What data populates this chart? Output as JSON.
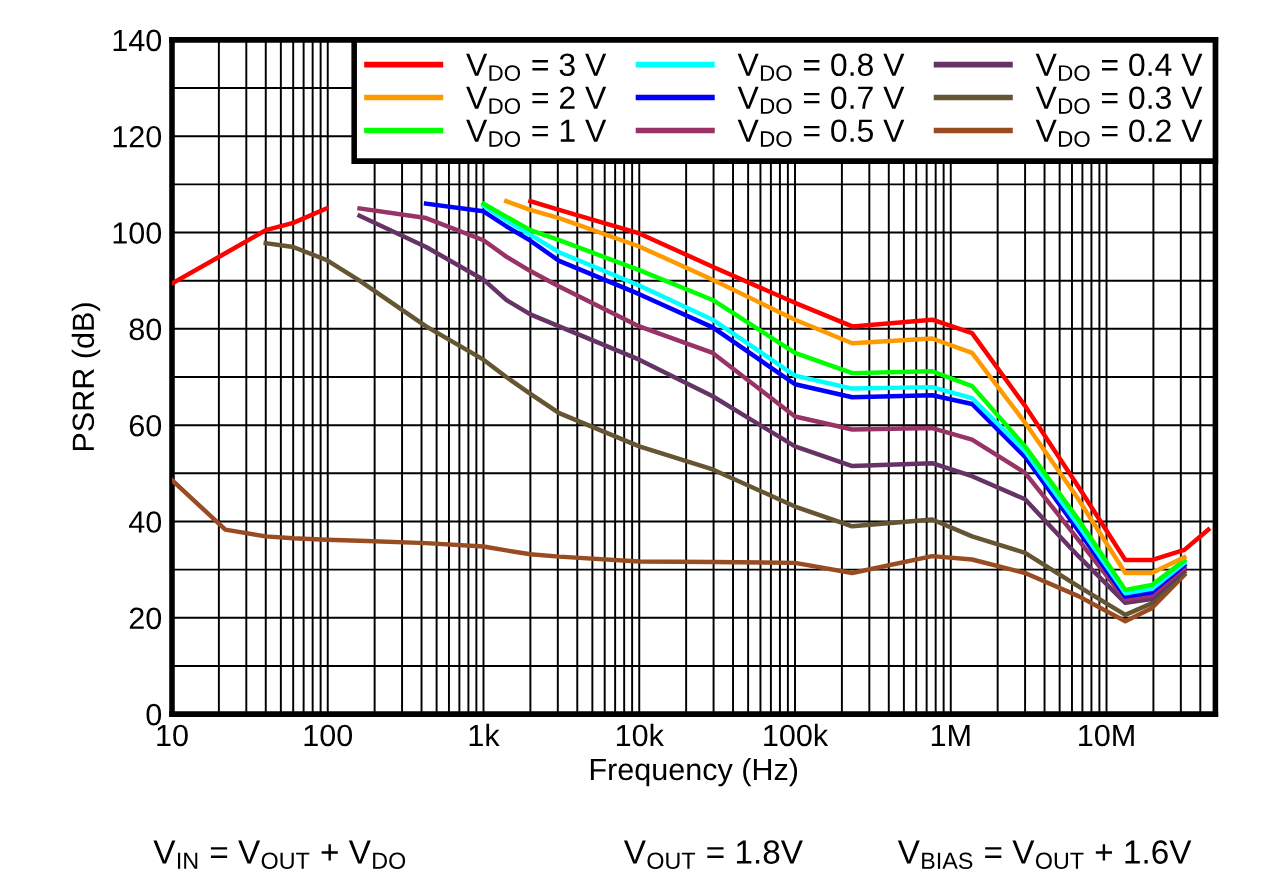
{
  "chart_data": {
    "type": "line",
    "xlabel": "Frequency (Hz)",
    "ylabel": "PSRR (dB)",
    "log": "x",
    "xlim": [
      10,
      50000000
    ],
    "xticks": [
      10,
      100,
      {
        "value": 1000,
        "label": "1k"
      },
      {
        "value": 10000,
        "label": "10k"
      },
      {
        "value": 100000,
        "label": "100k"
      },
      {
        "value": 1000000,
        "label": "1M"
      },
      {
        "value": 10000000,
        "label": "10M"
      }
    ],
    "ylim": [
      0,
      140
    ],
    "yticks": [
      0,
      {
        "value": 10,
        "label": null
      },
      20,
      {
        "value": 30,
        "label": null
      },
      40,
      {
        "value": 50,
        "label": null
      },
      60,
      {
        "value": 70,
        "label": null
      },
      80,
      {
        "value": 90,
        "label": null
      },
      100,
      {
        "value": 110,
        "label": null
      },
      120,
      {
        "value": 130,
        "label": null
      },
      140
    ],
    "grid": true,
    "legend": "top right",
    "line_style": "solid",
    "marker": "none",
    "x": [
      10,
      22,
      40,
      60,
      98,
      160,
      428,
      1000,
      1400,
      2000,
      3060,
      10000,
      29600,
      100000,
      233000,
      760000,
      1370000,
      3000000,
      6600000,
      13200000,
      19500000,
      31600000,
      45000000
    ],
    "series": [
      {
        "name": "V$_{DO}$ = 3 V",
        "color": "#ff0000",
        "values": [
          89.4,
          95.7,
          100.5,
          102,
          105,
          null,
          null,
          null,
          null,
          106.5,
          104.7,
          99.8,
          92.9,
          85.4,
          80.5,
          81.9,
          79.1,
          64,
          47.2,
          32,
          32,
          34.1,
          38.3
        ]
      },
      {
        "name": "V$_{DO}$ = 2 V",
        "color": "#ff9900",
        "values": [
          null,
          null,
          null,
          null,
          null,
          null,
          null,
          null,
          106.5,
          104.7,
          103,
          97.1,
          90.2,
          81.9,
          77,
          78,
          75,
          60.5,
          44.6,
          29.3,
          29.3,
          32.6,
          null
        ]
      },
      {
        "name": "V$_{DO}$ = 1 V",
        "color": "#00ff00",
        "values": [
          null,
          null,
          null,
          null,
          null,
          null,
          null,
          106,
          103.3,
          100.5,
          98.4,
          92.2,
          86,
          75,
          70.8,
          71.2,
          68.1,
          55.6,
          40.4,
          25.8,
          26.8,
          31.9,
          null
        ]
      },
      {
        "name": "V$_{DO}$ = 0.8 V",
        "color": "#00ffff",
        "values": [
          null,
          null,
          null,
          null,
          null,
          null,
          null,
          105.6,
          102.5,
          99.5,
          95.9,
          89,
          81.9,
          70.3,
          67.6,
          67.9,
          65.6,
          54.6,
          39.2,
          25.1,
          26,
          31.4,
          null
        ]
      },
      {
        "name": "V$_{DO}$ = 0.7 V",
        "color": "#0000ff",
        "values": [
          null,
          null,
          null,
          null,
          null,
          null,
          106,
          104.4,
          101.3,
          98.3,
          94.1,
          87.2,
          80.3,
          68.5,
          65.8,
          66.2,
          64.4,
          53.4,
          38.1,
          24.4,
          25.3,
          30.9,
          null
        ]
      },
      {
        "name": "V$_{DO}$ = 0.5 V",
        "color": "#993366",
        "values": [
          null,
          null,
          null,
          null,
          null,
          105,
          103,
          98.4,
          95,
          92,
          88.8,
          80.5,
          75,
          61.8,
          59.1,
          59.4,
          57,
          50.1,
          36.2,
          23.8,
          24.6,
          30.4,
          null
        ]
      },
      {
        "name": "V$_{DO}$ = 0.4 V",
        "color": "#663366",
        "values": [
          null,
          null,
          null,
          null,
          null,
          103.5,
          97,
          90.2,
          86,
          83,
          80.5,
          73.6,
          66,
          55.6,
          51.5,
          52.1,
          49.4,
          44.6,
          32.8,
          23.1,
          23.9,
          29.9,
          null
        ]
      },
      {
        "name": "V$_{DO}$ = 0.3 V",
        "color": "#665533",
        "values": [
          null,
          null,
          97.8,
          97,
          94.3,
          90,
          80.5,
          73.6,
          70,
          66.5,
          62.5,
          55.6,
          50.8,
          43.1,
          39,
          40.4,
          36.9,
          33.5,
          26.5,
          20.6,
          23,
          29.4,
          null
        ]
      },
      {
        "name": "V$_{DO}$ = 0.2 V",
        "color": "#994c22",
        "values": [
          48.6,
          38.3,
          36.9,
          36.5,
          36.2,
          36,
          35.5,
          34.8,
          34,
          33.2,
          32.7,
          31.7,
          31.6,
          31.4,
          29.3,
          32.8,
          32.1,
          29.3,
          24.5,
          19.3,
          22,
          28.9,
          null
        ]
      }
    ],
    "annotations": [
      "V$_{IN}$ = V$_{OUT}$ + V$_{DO}$",
      "V$_{OUT}$ = 1.8V",
      "V$_{BIAS}$ = V$_{OUT}$ + 1.6V"
    ]
  }
}
